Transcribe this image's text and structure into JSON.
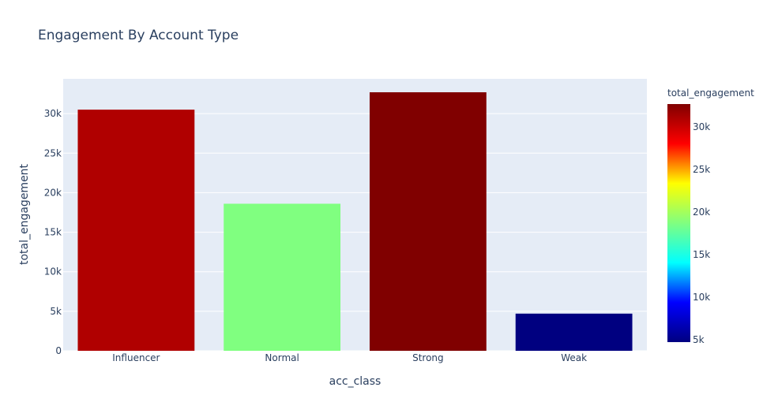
{
  "chart_data": {
    "type": "bar",
    "title": "Engagement By Account Type",
    "xlabel": "acc_class",
    "ylabel": "total_engagement",
    "categories": [
      "Influencer",
      "Normal",
      "Strong",
      "Weak"
    ],
    "values": [
      30500,
      18600,
      32700,
      4700
    ],
    "colors": [
      "#b00000",
      "#80ff80",
      "#800000",
      "#000080"
    ],
    "ylim": [
      0,
      34400
    ],
    "yticks": [
      0,
      5000,
      10000,
      15000,
      20000,
      25000,
      30000
    ],
    "ytick_labels": [
      "0",
      "5k",
      "10k",
      "15k",
      "20k",
      "25k",
      "30k"
    ],
    "grid": true,
    "plot_background": "#e5ecf6",
    "colorbar": {
      "title": "total_engagement",
      "colorscale": "Jet",
      "range": [
        4700,
        32700
      ],
      "ticks": [
        5000,
        10000,
        15000,
        20000,
        25000,
        30000
      ],
      "tick_labels": [
        "5k",
        "10k",
        "15k",
        "20k",
        "25k",
        "30k"
      ],
      "stops": [
        "#000080",
        "#0000ff",
        "#00ffff",
        "#80ff80",
        "#ffff00",
        "#ff0000",
        "#800000"
      ]
    }
  }
}
